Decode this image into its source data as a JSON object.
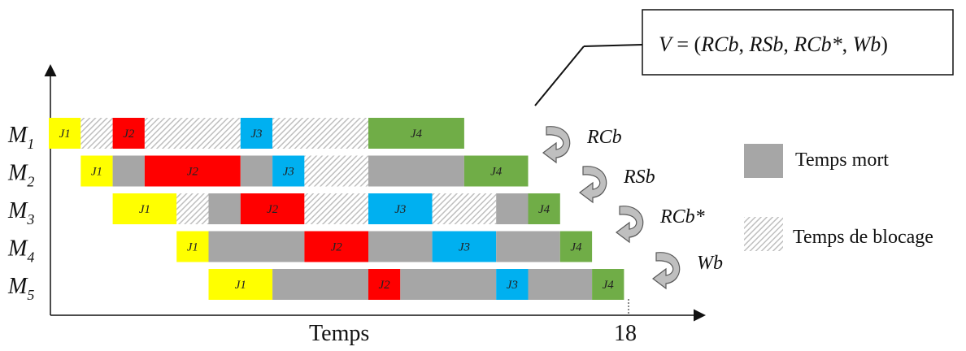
{
  "colors": {
    "J1": "#ffff00",
    "J2": "#ff0000",
    "J3": "#00b0f0",
    "J4": "#70ad47",
    "idle": "#a6a6a6",
    "block_pattern": "#bfbfbf"
  },
  "formula": {
    "lhs": "V",
    "eq": " = (",
    "items": [
      "RCb",
      "RSb",
      "RCb*",
      "Wb"
    ],
    "rhs_close": ")"
  },
  "machines": [
    {
      "name": "M",
      "sub": "1",
      "segments": [
        {
          "kind": "job",
          "job": "J1",
          "start": 0,
          "end": 1
        },
        {
          "kind": "block",
          "start": 1,
          "end": 2
        },
        {
          "kind": "job",
          "job": "J2",
          "start": 2,
          "end": 3
        },
        {
          "kind": "block",
          "start": 3,
          "end": 6
        },
        {
          "kind": "job",
          "job": "J3",
          "start": 6,
          "end": 7
        },
        {
          "kind": "block",
          "start": 7,
          "end": 10
        },
        {
          "kind": "job",
          "job": "J4",
          "start": 10,
          "end": 13
        }
      ]
    },
    {
      "name": "M",
      "sub": "2",
      "segments": [
        {
          "kind": "job",
          "job": "J1",
          "start": 1,
          "end": 2
        },
        {
          "kind": "idle",
          "start": 2,
          "end": 3
        },
        {
          "kind": "job",
          "job": "J2",
          "start": 3,
          "end": 6
        },
        {
          "kind": "idle",
          "start": 6,
          "end": 7
        },
        {
          "kind": "job",
          "job": "J3",
          "start": 7,
          "end": 8
        },
        {
          "kind": "block",
          "start": 8,
          "end": 10
        },
        {
          "kind": "idle",
          "start": 10,
          "end": 13
        },
        {
          "kind": "job",
          "job": "J4",
          "start": 13,
          "end": 15
        }
      ]
    },
    {
      "name": "M",
      "sub": "3",
      "segments": [
        {
          "kind": "job",
          "job": "J1",
          "start": 2,
          "end": 4
        },
        {
          "kind": "block",
          "start": 4,
          "end": 5
        },
        {
          "kind": "idle",
          "start": 5,
          "end": 6
        },
        {
          "kind": "job",
          "job": "J2",
          "start": 6,
          "end": 8
        },
        {
          "kind": "block",
          "start": 8,
          "end": 10
        },
        {
          "kind": "job",
          "job": "J3",
          "start": 10,
          "end": 12
        },
        {
          "kind": "block",
          "start": 12,
          "end": 14
        },
        {
          "kind": "idle",
          "start": 14,
          "end": 15
        },
        {
          "kind": "job",
          "job": "J4",
          "start": 15,
          "end": 16
        }
      ]
    },
    {
      "name": "M",
      "sub": "4",
      "segments": [
        {
          "kind": "job",
          "job": "J1",
          "start": 4,
          "end": 5
        },
        {
          "kind": "idle",
          "start": 5,
          "end": 8
        },
        {
          "kind": "job",
          "job": "J2",
          "start": 8,
          "end": 10
        },
        {
          "kind": "idle",
          "start": 10,
          "end": 12
        },
        {
          "kind": "job",
          "job": "J3",
          "start": 12,
          "end": 14
        },
        {
          "kind": "idle",
          "start": 14,
          "end": 16
        },
        {
          "kind": "job",
          "job": "J4",
          "start": 16,
          "end": 17
        }
      ]
    },
    {
      "name": "M",
      "sub": "5",
      "segments": [
        {
          "kind": "job",
          "job": "J1",
          "start": 5,
          "end": 7
        },
        {
          "kind": "idle",
          "start": 7,
          "end": 10
        },
        {
          "kind": "job",
          "job": "J2",
          "start": 10,
          "end": 11
        },
        {
          "kind": "idle",
          "start": 11,
          "end": 14
        },
        {
          "kind": "job",
          "job": "J3",
          "start": 14,
          "end": 15
        },
        {
          "kind": "idle",
          "start": 15,
          "end": 17
        },
        {
          "kind": "job",
          "job": "J4",
          "start": 17,
          "end": 18
        }
      ]
    }
  ],
  "arrows": [
    "RCb",
    "RSb",
    "RCb*",
    "Wb"
  ],
  "legend": [
    {
      "kind": "idle",
      "label": "Temps mort"
    },
    {
      "kind": "block",
      "label": "Temps de blocage"
    }
  ],
  "axis": {
    "x_label": "Temps",
    "end_tick": "18"
  }
}
